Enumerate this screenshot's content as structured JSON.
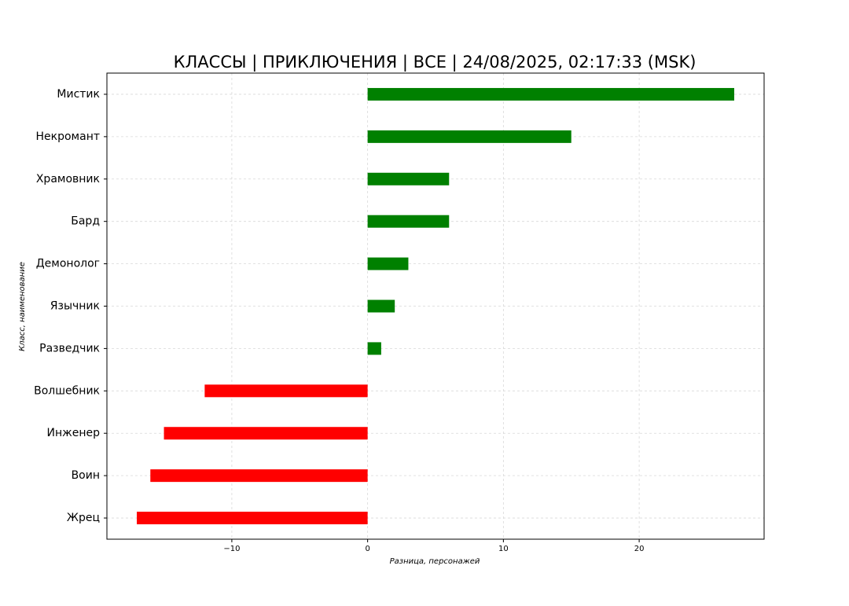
{
  "chart_data": {
    "type": "barh",
    "title": "КЛАССЫ | ПРИКЛЮЧЕНИЯ | ВСЕ | 24/08/2025, 02:17:33 (MSK)",
    "x_label": "Разница, персонажей",
    "y_label": "Класс, наименование",
    "categories": [
      "Мистик",
      "Некромант",
      "Храмовник",
      "Бард",
      "Демонолог",
      "Язычник",
      "Разведчик",
      "Волшебник",
      "Инженер",
      "Воин",
      "Жрец"
    ],
    "values": [
      27,
      15,
      6,
      6,
      3,
      2,
      1,
      -12,
      -15,
      -16,
      -17
    ],
    "colors": [
      "#008000",
      "#008000",
      "#008000",
      "#008000",
      "#008000",
      "#008000",
      "#008000",
      "#ff0000",
      "#ff0000",
      "#ff0000",
      "#ff0000"
    ],
    "xlim": [
      -19.2,
      29.2
    ],
    "xticks": [
      {
        "value": -10,
        "label": "−10"
      },
      0,
      10,
      20
    ],
    "grid": true
  }
}
